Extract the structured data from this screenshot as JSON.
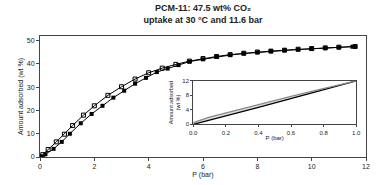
{
  "chart_data": [
    {
      "type": "line",
      "title": "PCM-11: 47.5 wt% CO₂",
      "subtitle": "uptake at 30 °C and 11.6 bar",
      "xlabel": "P (bar)",
      "ylabel": "Amount adsorbed (wt %)",
      "series": [
        {
          "color": "black",
          "marker": "square",
          "line_style": "solid",
          "x": [
            0.05,
            0.2,
            0.5,
            0.8,
            1.1,
            1.5,
            1.9,
            2.3,
            2.7,
            3.1,
            3.5,
            3.9,
            4.3,
            4.7,
            5.1,
            5.5,
            6.0,
            6.5,
            7.0,
            7.5,
            8.0,
            8.5,
            9.0,
            9.5,
            10.0,
            10.5,
            11.0,
            11.5,
            11.6
          ],
          "values": [
            0.3,
            1.2,
            3.5,
            6.5,
            10.0,
            14.5,
            18.5,
            22.0,
            25.5,
            28.5,
            31.5,
            34.0,
            36.5,
            38.0,
            39.5,
            41.0,
            42.0,
            43.0,
            43.8,
            44.5,
            45.0,
            45.5,
            45.9,
            46.2,
            46.5,
            46.8,
            47.1,
            47.4,
            47.5
          ]
        },
        {
          "color": "black",
          "marker": "square-open",
          "line_style": "solid",
          "x": [
            11.6,
            11.0,
            10.5,
            10.0,
            9.5,
            9.0,
            8.5,
            8.0,
            7.5,
            7.0,
            6.5,
            6.0,
            5.5,
            5.0,
            4.5,
            4.0,
            3.5,
            3.0,
            2.5,
            2.0,
            1.6,
            1.2,
            0.9,
            0.6,
            0.3,
            0.1
          ],
          "values": [
            47.5,
            47.2,
            46.9,
            46.6,
            46.3,
            45.9,
            45.5,
            45.1,
            44.6,
            44.0,
            43.2,
            42.3,
            41.2,
            39.8,
            38.2,
            36.2,
            33.5,
            30.2,
            26.5,
            22.0,
            18.0,
            13.5,
            9.8,
            6.5,
            3.2,
            1.0
          ]
        }
      ],
      "xlim": [
        0,
        12
      ],
      "ylim": [
        0,
        52
      ],
      "xticks": [
        0,
        2,
        4,
        6,
        8,
        10,
        12
      ],
      "yticks": [
        0,
        10,
        20,
        30,
        40,
        50
      ],
      "grid": false
    },
    {
      "type": "line",
      "xlabel": "P (bar)",
      "ylabel": "Amount adsorbed\n(wt %)",
      "series": [
        {
          "color": "black",
          "line_style": "solid",
          "x": [
            0.0,
            0.1,
            0.2,
            0.3,
            0.4,
            0.5,
            0.6,
            0.7,
            0.8,
            0.9,
            1.0
          ],
          "values": [
            0.0,
            1.1,
            2.3,
            3.5,
            4.7,
            5.9,
            7.1,
            8.3,
            9.5,
            10.7,
            12.0
          ]
        },
        {
          "color": "#888888",
          "line_style": "solid",
          "x": [
            1.0,
            0.9,
            0.8,
            0.7,
            0.6,
            0.5,
            0.4,
            0.3,
            0.2,
            0.1,
            0.0
          ],
          "values": [
            12.0,
            11.0,
            9.9,
            8.8,
            7.7,
            6.6,
            5.5,
            4.4,
            3.2,
            2.0,
            0.5
          ]
        }
      ],
      "xlim": [
        0,
        1.0
      ],
      "ylim": [
        0,
        12
      ],
      "xticks": [
        {
          "value": 0.0,
          "label": "0.0"
        },
        0.2,
        0.4,
        0.6,
        0.8,
        {
          "value": 1.0,
          "label": "1.0"
        }
      ],
      "yticks": [
        0,
        4,
        8,
        12
      ],
      "grid": false
    }
  ]
}
